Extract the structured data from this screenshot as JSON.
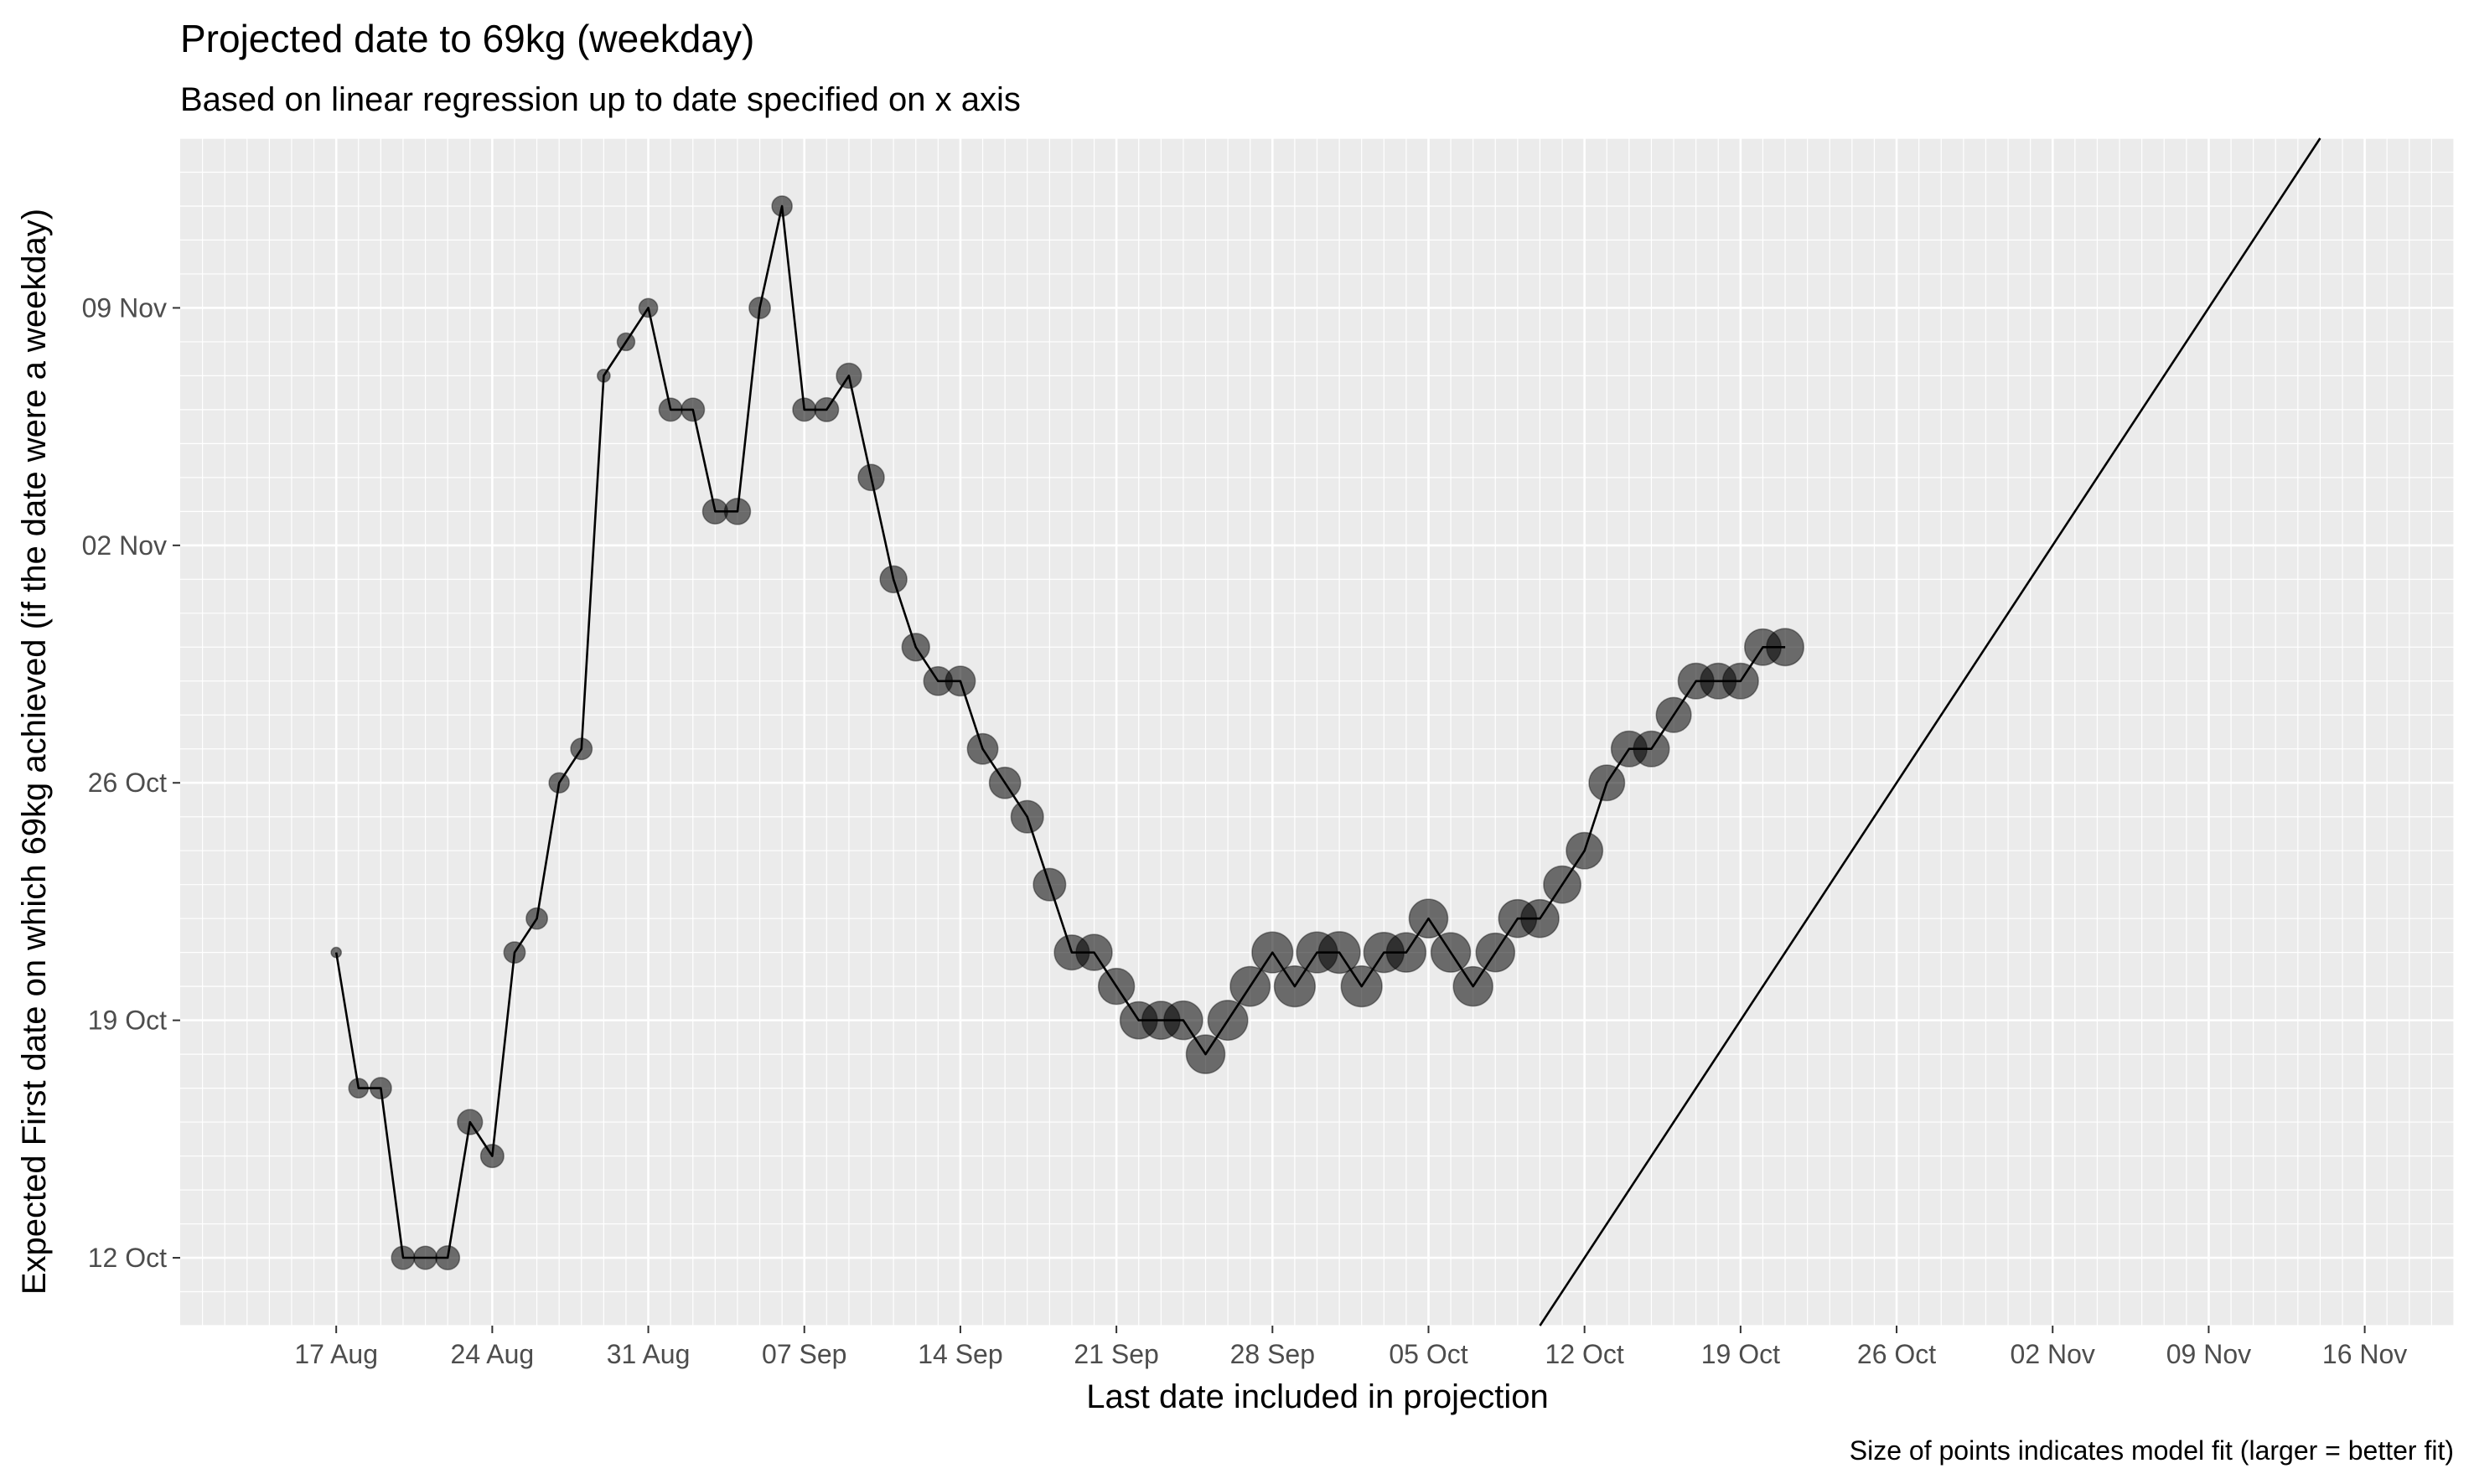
{
  "chart_data": {
    "type": "scatter",
    "title": "Projected date to 69kg (weekday)",
    "subtitle": "Based on linear regression up to date specified on x axis",
    "xlabel": "Last date included in projection",
    "ylabel": "Expected First date on which 69kg achieved (if the date were a weekday)",
    "caption": "Size of points indicates model fit (larger = better fit)",
    "x_ticks": [
      "17 Aug",
      "24 Aug",
      "31 Aug",
      "07 Sep",
      "14 Sep",
      "21 Sep",
      "28 Sep",
      "05 Oct",
      "12 Oct",
      "19 Oct",
      "26 Oct",
      "02 Nov",
      "09 Nov",
      "16 Nov"
    ],
    "y_ticks": [
      "12 Oct",
      "19 Oct",
      "26 Oct",
      "02 Nov",
      "09 Nov"
    ],
    "xlim": [
      "2020-08-10",
      "2020-11-20"
    ],
    "ylim": [
      "2020-10-10",
      "2020-11-14"
    ],
    "grid": true,
    "legend": "none",
    "colors": {
      "panel_background": "#ebebeb",
      "grid": "#ffffff",
      "point": "#000000",
      "line": "#000000"
    },
    "reference_line": {
      "label": "",
      "from": [
        "2020-11-10",
        "2020-11-10"
      ],
      "to": [
        "2020-11-14",
        "2020-11-14"
      ],
      "description": "y = x"
    },
    "points": [
      {
        "x": "2020-08-17",
        "y": "2020-10-21",
        "fit": 0.05
      },
      {
        "x": "2020-08-18",
        "y": "2020-10-17",
        "fit": 0.3
      },
      {
        "x": "2020-08-19",
        "y": "2020-10-17",
        "fit": 0.35
      },
      {
        "x": "2020-08-20",
        "y": "2020-10-12",
        "fit": 0.4
      },
      {
        "x": "2020-08-21",
        "y": "2020-10-12",
        "fit": 0.4
      },
      {
        "x": "2020-08-22",
        "y": "2020-10-12",
        "fit": 0.42
      },
      {
        "x": "2020-08-23",
        "y": "2020-10-16",
        "fit": 0.45
      },
      {
        "x": "2020-08-24",
        "y": "2020-10-15",
        "fit": 0.4
      },
      {
        "x": "2020-08-25",
        "y": "2020-10-21",
        "fit": 0.35
      },
      {
        "x": "2020-08-26",
        "y": "2020-10-22",
        "fit": 0.35
      },
      {
        "x": "2020-08-27",
        "y": "2020-10-26",
        "fit": 0.32
      },
      {
        "x": "2020-08-28",
        "y": "2020-10-27",
        "fit": 0.35
      },
      {
        "x": "2020-08-29",
        "y": "2020-11-07",
        "fit": 0.12
      },
      {
        "x": "2020-08-30",
        "y": "2020-11-08",
        "fit": 0.25
      },
      {
        "x": "2020-08-31",
        "y": "2020-11-09",
        "fit": 0.28
      },
      {
        "x": "2020-09-01",
        "y": "2020-11-06",
        "fit": 0.4
      },
      {
        "x": "2020-09-02",
        "y": "2020-11-06",
        "fit": 0.4
      },
      {
        "x": "2020-09-03",
        "y": "2020-11-03",
        "fit": 0.45
      },
      {
        "x": "2020-09-04",
        "y": "2020-11-03",
        "fit": 0.48
      },
      {
        "x": "2020-09-05",
        "y": "2020-11-09",
        "fit": 0.35
      },
      {
        "x": "2020-09-06",
        "y": "2020-11-12",
        "fit": 0.32
      },
      {
        "x": "2020-09-07",
        "y": "2020-11-06",
        "fit": 0.4
      },
      {
        "x": "2020-09-08",
        "y": "2020-11-06",
        "fit": 0.42
      },
      {
        "x": "2020-09-09",
        "y": "2020-11-07",
        "fit": 0.45
      },
      {
        "x": "2020-09-10",
        "y": "2020-11-04",
        "fit": 0.48
      },
      {
        "x": "2020-09-11",
        "y": "2020-11-01",
        "fit": 0.5
      },
      {
        "x": "2020-09-12",
        "y": "2020-10-30",
        "fit": 0.52
      },
      {
        "x": "2020-09-13",
        "y": "2020-10-29",
        "fit": 0.55
      },
      {
        "x": "2020-09-14",
        "y": "2020-10-29",
        "fit": 0.58
      },
      {
        "x": "2020-09-15",
        "y": "2020-10-27",
        "fit": 0.6
      },
      {
        "x": "2020-09-16",
        "y": "2020-10-26",
        "fit": 0.62
      },
      {
        "x": "2020-09-17",
        "y": "2020-10-25",
        "fit": 0.65
      },
      {
        "x": "2020-09-18",
        "y": "2020-10-23",
        "fit": 0.65
      },
      {
        "x": "2020-09-19",
        "y": "2020-10-21",
        "fit": 0.72
      },
      {
        "x": "2020-09-20",
        "y": "2020-10-21",
        "fit": 0.75
      },
      {
        "x": "2020-09-21",
        "y": "2020-10-20",
        "fit": 0.75
      },
      {
        "x": "2020-09-22",
        "y": "2020-10-19",
        "fit": 0.78
      },
      {
        "x": "2020-09-23",
        "y": "2020-10-19",
        "fit": 0.8
      },
      {
        "x": "2020-09-24",
        "y": "2020-10-19",
        "fit": 0.82
      },
      {
        "x": "2020-09-25",
        "y": "2020-10-18",
        "fit": 0.82
      },
      {
        "x": "2020-09-26",
        "y": "2020-10-19",
        "fit": 0.85
      },
      {
        "x": "2020-09-27",
        "y": "2020-10-20",
        "fit": 0.85
      },
      {
        "x": "2020-09-28",
        "y": "2020-10-21",
        "fit": 0.88
      },
      {
        "x": "2020-09-29",
        "y": "2020-10-20",
        "fit": 0.88
      },
      {
        "x": "2020-09-30",
        "y": "2020-10-21",
        "fit": 0.88
      },
      {
        "x": "2020-10-01",
        "y": "2020-10-21",
        "fit": 0.9
      },
      {
        "x": "2020-10-02",
        "y": "2020-10-20",
        "fit": 0.88
      },
      {
        "x": "2020-10-03",
        "y": "2020-10-21",
        "fit": 0.86
      },
      {
        "x": "2020-10-04",
        "y": "2020-10-21",
        "fit": 0.84
      },
      {
        "x": "2020-10-05",
        "y": "2020-10-22",
        "fit": 0.82
      },
      {
        "x": "2020-10-06",
        "y": "2020-10-21",
        "fit": 0.84
      },
      {
        "x": "2020-10-07",
        "y": "2020-10-20",
        "fit": 0.84
      },
      {
        "x": "2020-10-08",
        "y": "2020-10-21",
        "fit": 0.82
      },
      {
        "x": "2020-10-09",
        "y": "2020-10-22",
        "fit": 0.8
      },
      {
        "x": "2020-10-10",
        "y": "2020-10-22",
        "fit": 0.8
      },
      {
        "x": "2020-10-11",
        "y": "2020-10-23",
        "fit": 0.78
      },
      {
        "x": "2020-10-12",
        "y": "2020-10-24",
        "fit": 0.76
      },
      {
        "x": "2020-10-13",
        "y": "2020-10-26",
        "fit": 0.74
      },
      {
        "x": "2020-10-14",
        "y": "2020-10-27",
        "fit": 0.74
      },
      {
        "x": "2020-10-15",
        "y": "2020-10-27",
        "fit": 0.74
      },
      {
        "x": "2020-10-16",
        "y": "2020-10-28",
        "fit": 0.72
      },
      {
        "x": "2020-10-17",
        "y": "2020-10-29",
        "fit": 0.74
      },
      {
        "x": "2020-10-18",
        "y": "2020-10-29",
        "fit": 0.74
      },
      {
        "x": "2020-10-19",
        "y": "2020-10-29",
        "fit": 0.74
      },
      {
        "x": "2020-10-20",
        "y": "2020-10-30",
        "fit": 0.76
      },
      {
        "x": "2020-10-21",
        "y": "2020-10-30",
        "fit": 0.78
      }
    ]
  }
}
